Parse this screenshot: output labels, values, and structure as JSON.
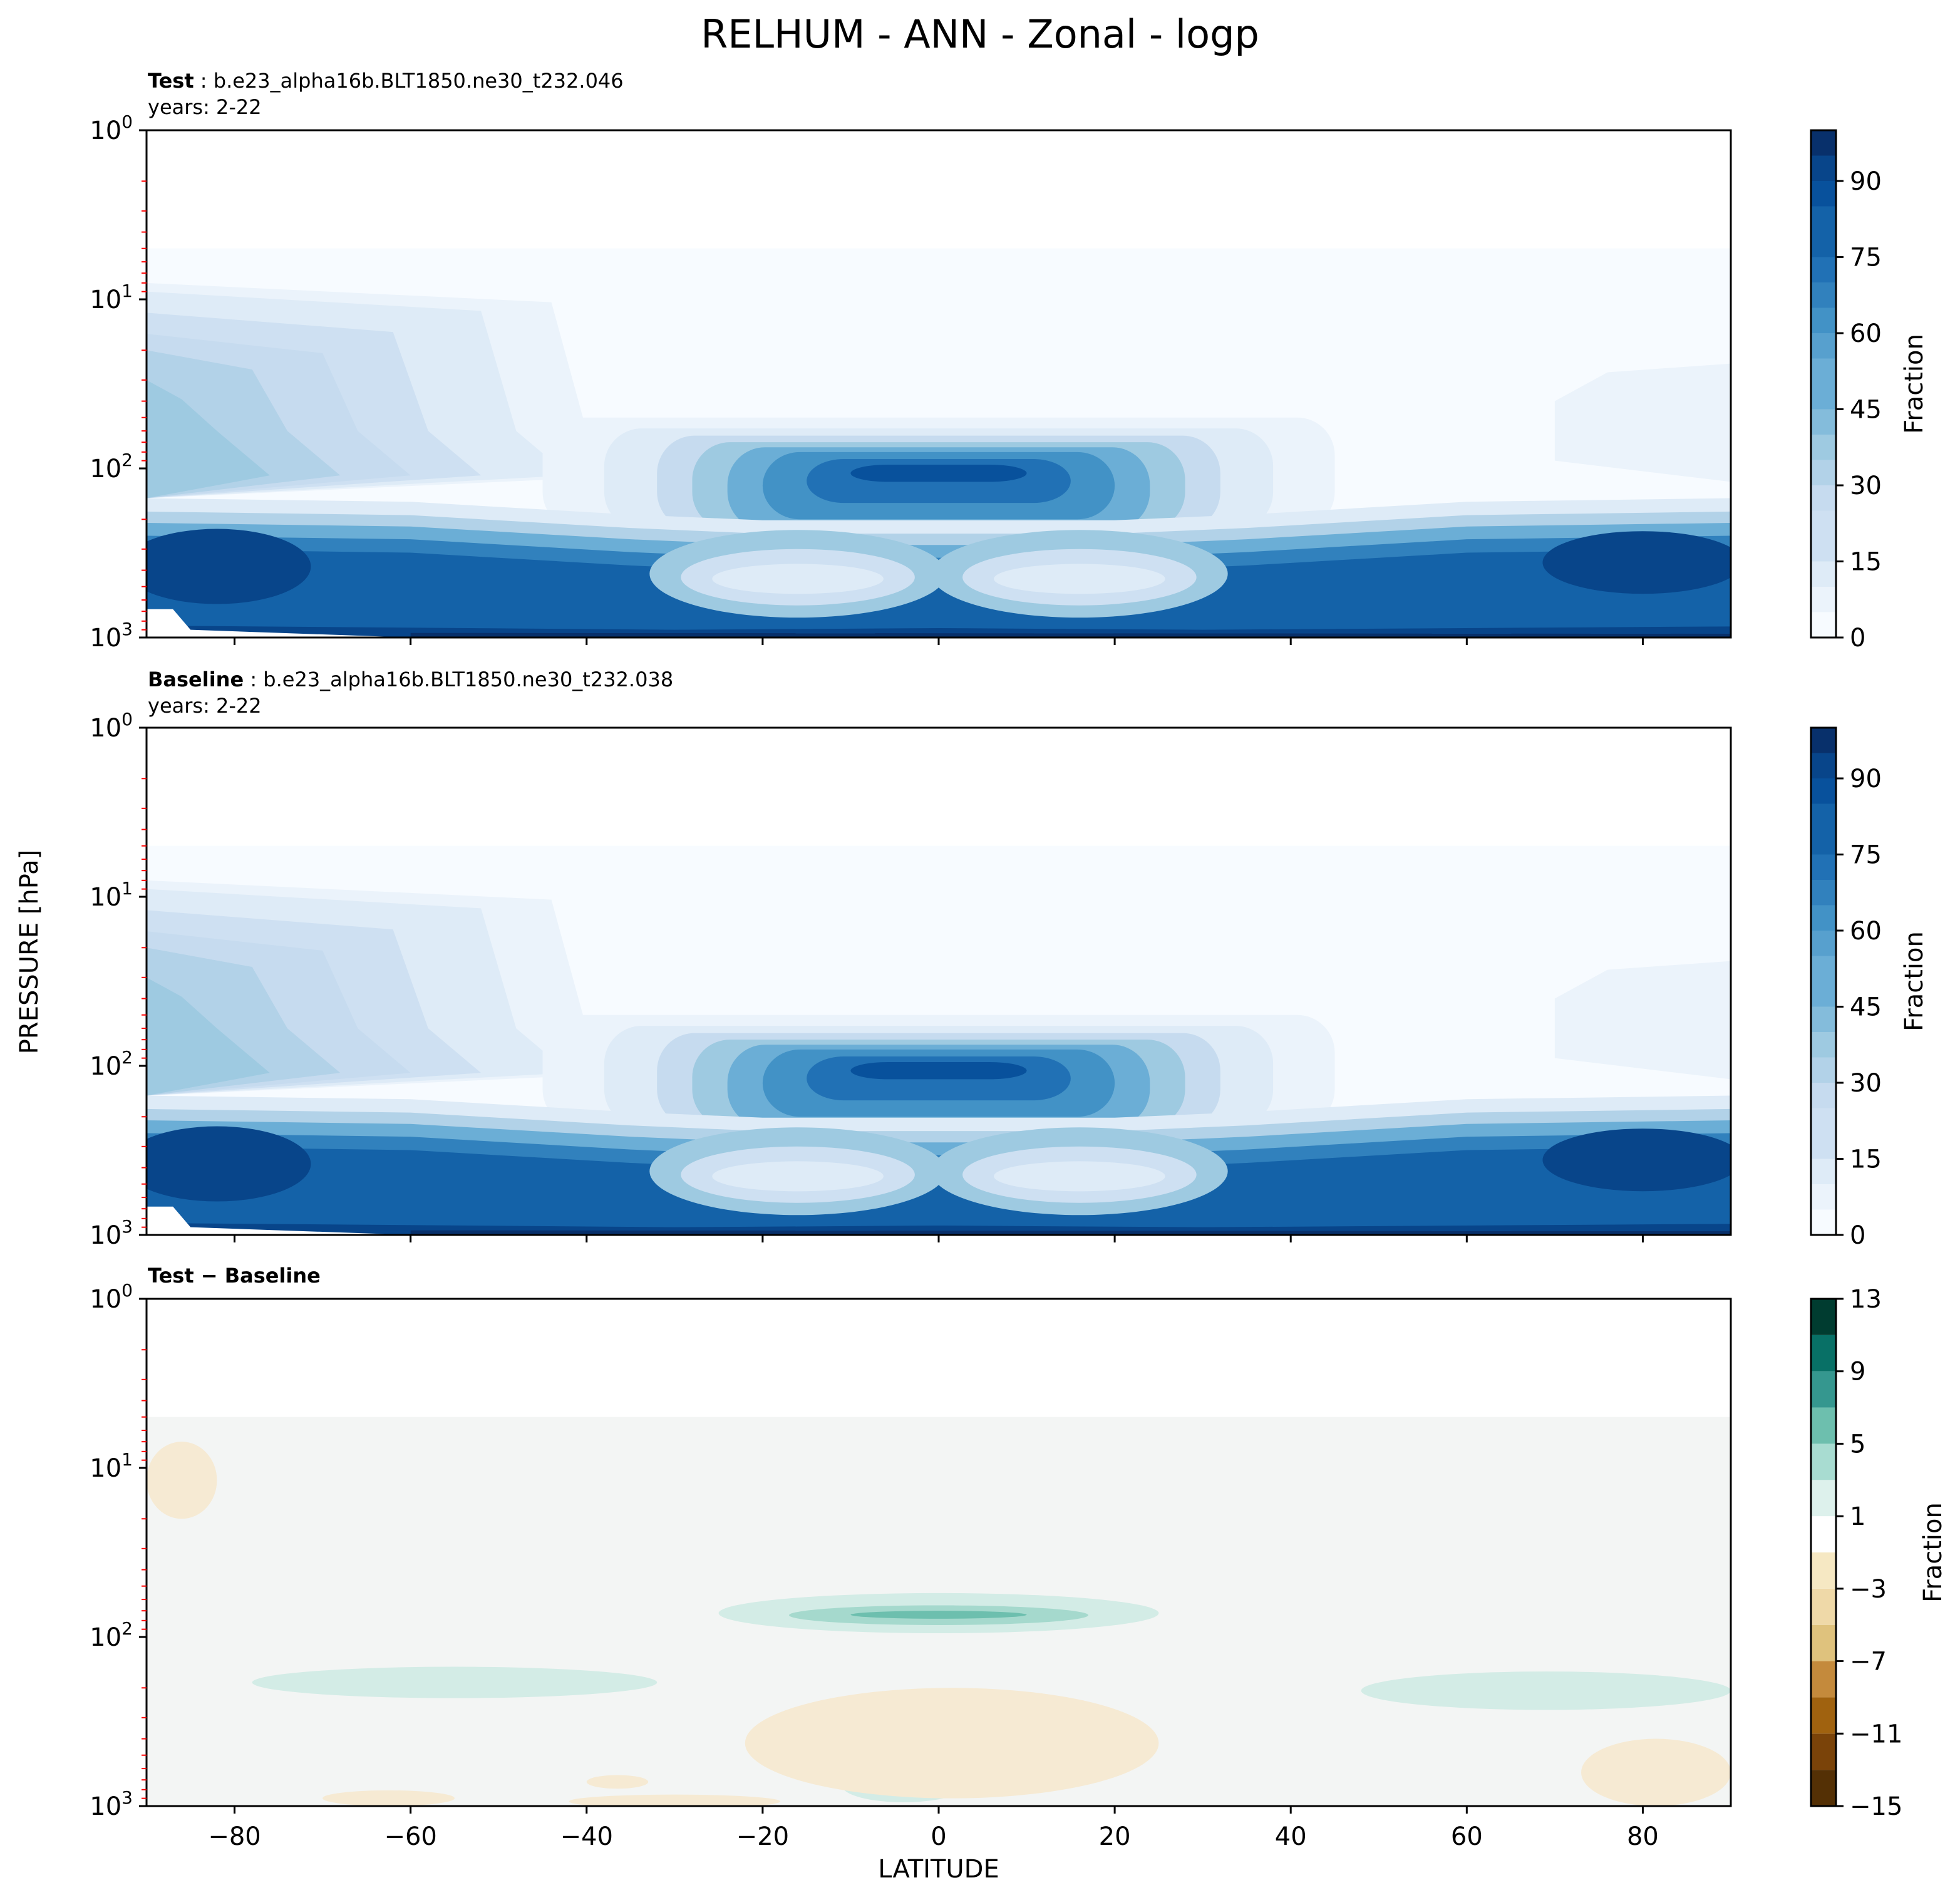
{
  "figure": {
    "title": "RELHUM - ANN - Zonal - logp",
    "ylabel": "PRESSURE [hPa]",
    "xlabel": "LATITUDE"
  },
  "colors": {
    "blues": [
      "#f7fbff",
      "#ebf3fb",
      "#deebf7",
      "#cee0f2",
      "#c6dbef",
      "#b2d2e8",
      "#9ecae1",
      "#84bcdb",
      "#6baed6",
      "#57a0ce",
      "#4292c6",
      "#3181bd",
      "#2171b5",
      "#1462a8",
      "#08519c",
      "#08458a",
      "#08306b"
    ],
    "brbg": [
      "#543005",
      "#8c510a",
      "#bf812d",
      "#dfc27d",
      "#f6e8c3",
      "#ffffff",
      "#c7eae5",
      "#80cdc1",
      "#35978f",
      "#01665e",
      "#003c30"
    ],
    "diff_bg": "#f3f5f4",
    "diff_pos": "#d3ece6",
    "diff_pos2": "#a5d9cd",
    "diff_pos3": "#6dbfae",
    "diff_neg": "#f6ead3",
    "tick_minor_red": "#ff0000"
  },
  "panels": [
    {
      "title_bold": "Test",
      "title_rest": " : b.e23_alpha16b.BLT1850.ne30_t232.046",
      "years": "years: 2-22"
    },
    {
      "title_bold": "Baseline",
      "title_rest": " : b.e23_alpha16b.BLT1850.ne30_t232.038",
      "years": "years: 2-22"
    },
    {
      "title_bold": "Test − Baseline",
      "title_rest": "",
      "years": ""
    }
  ],
  "chart_data": [
    {
      "type": "heatmap",
      "name": "Test",
      "x": [
        -90,
        90
      ],
      "xlabel": "LATITUDE",
      "ylabel": "PRESSURE [hPa]",
      "yscale": "log",
      "ylim": [
        1000,
        1
      ],
      "xticks": [
        -80,
        -60,
        -40,
        -20,
        0,
        20,
        40,
        60,
        80
      ],
      "yticks": [
        "10^0",
        "10^1",
        "10^2",
        "10^3"
      ],
      "colorbar": {
        "label": "Fraction",
        "min": 0,
        "max": 100,
        "step": 5,
        "ticks": [
          "0",
          "15",
          "30",
          "45",
          "60",
          "75",
          "90"
        ]
      },
      "features": [
        {
          "lat": [
            -90,
            -50
          ],
          "p": [
            60,
            1000
          ],
          "value": 85
        },
        {
          "lat": [
            -30,
            30
          ],
          "p": [
            80,
            150
          ],
          "value": 80
        },
        {
          "lat": [
            -25,
            25
          ],
          "p": [
            300,
            700
          ],
          "value": 25
        },
        {
          "lat": [
            50,
            90
          ],
          "p": [
            250,
            900
          ],
          "value": 85
        },
        {
          "lat": [
            -90,
            -60
          ],
          "p": [
            5,
            80
          ],
          "value": 40
        },
        {
          "lat": [
            70,
            90
          ],
          "p": [
            20,
            100
          ],
          "value": 12
        }
      ]
    },
    {
      "type": "heatmap",
      "name": "Baseline",
      "x": [
        -90,
        90
      ],
      "xlabel": "LATITUDE",
      "ylabel": "PRESSURE [hPa]",
      "yscale": "log",
      "ylim": [
        1000,
        1
      ],
      "xticks": [
        -80,
        -60,
        -40,
        -20,
        0,
        20,
        40,
        60,
        80
      ],
      "yticks": [
        "10^0",
        "10^1",
        "10^2",
        "10^3"
      ],
      "colorbar": {
        "label": "Fraction",
        "min": 0,
        "max": 100,
        "step": 5,
        "ticks": [
          "0",
          "15",
          "30",
          "45",
          "60",
          "75",
          "90"
        ]
      },
      "features": [
        {
          "lat": [
            -90,
            -50
          ],
          "p": [
            60,
            1000
          ],
          "value": 85
        },
        {
          "lat": [
            -30,
            30
          ],
          "p": [
            80,
            150
          ],
          "value": 78
        },
        {
          "lat": [
            -25,
            25
          ],
          "p": [
            300,
            700
          ],
          "value": 25
        },
        {
          "lat": [
            50,
            90
          ],
          "p": [
            250,
            900
          ],
          "value": 85
        },
        {
          "lat": [
            -90,
            -60
          ],
          "p": [
            5,
            80
          ],
          "value": 40
        },
        {
          "lat": [
            70,
            90
          ],
          "p": [
            20,
            100
          ],
          "value": 12
        }
      ]
    },
    {
      "type": "heatmap",
      "name": "Test − Baseline",
      "x": [
        -90,
        90
      ],
      "xlabel": "LATITUDE",
      "ylabel": "PRESSURE [hPa]",
      "yscale": "log",
      "ylim": [
        1000,
        1
      ],
      "xticks": [
        -80,
        -60,
        -40,
        -20,
        0,
        20,
        40,
        60,
        80
      ],
      "xticklabels": [
        "−80",
        "−60",
        "−40",
        "−20",
        "0",
        "20",
        "40",
        "60",
        "80"
      ],
      "yticks": [
        "10^0",
        "10^1",
        "10^2",
        "10^3"
      ],
      "colorbar": {
        "label": "Fraction",
        "levels": [
          -15,
          -13,
          -11,
          -9,
          -7,
          -5,
          -3,
          -1,
          1,
          3,
          5,
          7,
          9,
          11,
          13
        ],
        "ticks": [
          "−15",
          "−11",
          "−7",
          "−3",
          "1",
          "5",
          "9",
          "13"
        ]
      },
      "features": [
        {
          "lat": [
            -25,
            25
          ],
          "p": [
            55,
            95
          ],
          "value": 3
        },
        {
          "lat": [
            -17,
            17
          ],
          "p": [
            65,
            85
          ],
          "value": 5
        },
        {
          "lat": [
            -10,
            10
          ],
          "p": [
            70,
            78
          ],
          "value": 7
        },
        {
          "lat": [
            -78,
            -32
          ],
          "p": [
            150,
            230
          ],
          "value": 2
        },
        {
          "lat": [
            48,
            90
          ],
          "p": [
            160,
            270
          ],
          "value": 2
        },
        {
          "lat": [
            -11,
            3
          ],
          "p": [
            600,
            950
          ],
          "value": 2
        },
        {
          "lat": [
            -90,
            -82
          ],
          "p": [
            7,
            20
          ],
          "value": -2
        },
        {
          "lat": [
            -22,
            25
          ],
          "p": [
            200,
            900
          ],
          "value": -2
        },
        {
          "lat": [
            73,
            90
          ],
          "p": [
            400,
            1000
          ],
          "value": -2
        }
      ]
    }
  ]
}
